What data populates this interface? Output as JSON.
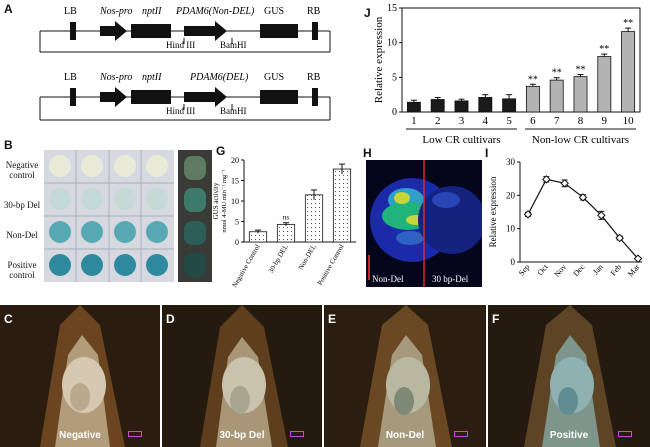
{
  "panels": {
    "A": "A",
    "B": "B",
    "C": "C",
    "D": "D",
    "E": "E",
    "F": "F",
    "G": "G",
    "H": "H",
    "I": "I",
    "J": "J"
  },
  "constructA": {
    "top": {
      "lb": "LB",
      "promoter": "Nos-pro",
      "marker": "nptII",
      "gene": "PDAM6(Non-DEL)",
      "reporter": "GUS",
      "rb": "RB",
      "site1": "Hind III",
      "site2": "BamHI"
    },
    "bottom": {
      "lb": "LB",
      "promoter": "Nos-pro",
      "marker": "nptII",
      "gene": "PDAM6(DEL)",
      "reporter": "GUS",
      "rb": "RB",
      "site1": "Hind III",
      "site2": "BamHI"
    }
  },
  "panelB": {
    "rows": [
      "Negative control",
      "30-bp Del",
      "Non-Del",
      "Positive control"
    ]
  },
  "panelH": {
    "left": "Non-Del",
    "right": "30 bp-Del"
  },
  "photos": {
    "C": "Negative",
    "D": "30-bp Del",
    "E": "Non-Del",
    "F": "Positive"
  },
  "chart_data": [
    {
      "id": "J",
      "type": "bar",
      "categories": [
        "1",
        "2",
        "3",
        "4",
        "5",
        "6",
        "7",
        "8",
        "9",
        "10"
      ],
      "values": [
        1.4,
        1.8,
        1.6,
        2.1,
        1.9,
        3.7,
        4.6,
        5.1,
        8.0,
        11.6
      ],
      "errors": [
        0.3,
        0.3,
        0.25,
        0.4,
        0.6,
        0.3,
        0.35,
        0.3,
        0.35,
        0.5
      ],
      "annotations": [
        "",
        "",
        "",
        "",
        "",
        "**",
        "**",
        "**",
        "**",
        "**"
      ],
      "groups": [
        "Low CR cultivars",
        "Non-low CR cultivars"
      ],
      "ylabel": "Relative expression",
      "ylim": [
        0,
        15
      ],
      "yticks": [
        "0",
        "5",
        "10",
        "15"
      ],
      "colors": {
        "low": "#1a1a1a",
        "high": "#b3b3b3"
      }
    },
    {
      "id": "G",
      "type": "bar",
      "categories": [
        "Negative Control",
        "30-bp DEL",
        "Non-DEL",
        "Positive Control"
      ],
      "values": [
        2.5,
        4.3,
        11.5,
        17.8
      ],
      "errors": [
        0.4,
        0.4,
        1.2,
        1.2
      ],
      "annotations": [
        "",
        "ns",
        "",
        ""
      ],
      "ylabel": "GUS activity",
      "ylabel2": "nmol 4-MU min⁻¹ mg⁻¹",
      "ylim": [
        0,
        20
      ],
      "yticks": [
        "0",
        "5",
        "10",
        "15",
        "20"
      ]
    },
    {
      "id": "I",
      "type": "line",
      "categories": [
        "Sep",
        "Oct",
        "Nov",
        "Dec",
        "Jan",
        "Feb",
        "Mar"
      ],
      "values": [
        14.3,
        24.8,
        23.6,
        19.4,
        14.0,
        7.2,
        1.0
      ],
      "errors": [
        0.6,
        0.8,
        1.0,
        0.8,
        1.2,
        0.6,
        0.3
      ],
      "ylabel": "Relative expression",
      "ylim": [
        0,
        30
      ],
      "yticks": [
        "0",
        "10",
        "20",
        "30"
      ]
    }
  ]
}
